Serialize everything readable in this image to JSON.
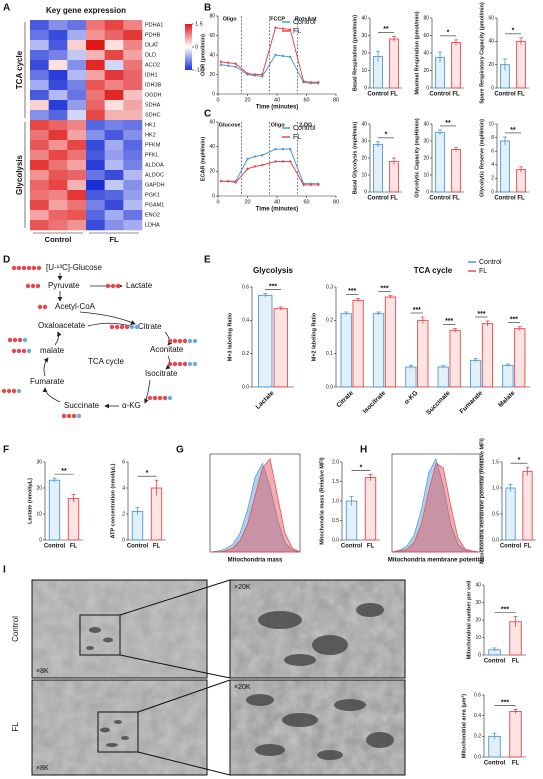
{
  "panel_labels": [
    "A",
    "B",
    "C",
    "D",
    "E",
    "F",
    "G",
    "H",
    "I"
  ],
  "chart_data": [
    {
      "type": "heatmap",
      "title": "Key gene expression",
      "column_groups": [
        "Control",
        "FL"
      ],
      "zlim": [
        -1.5,
        1.5
      ],
      "colorbar_ticks": [
        1.5,
        0,
        -1.5
      ],
      "colors": [
        "#1a2fd6",
        "#ffffff",
        "#e01818"
      ],
      "groups": [
        {
          "label": "TCA cycle",
          "rows": [
            "PDHA1",
            "PDHB",
            "DLAT",
            "DLD",
            "ACO2",
            "IDH1",
            "IDH3B",
            "OGDH",
            "SDHA",
            "SDHC"
          ],
          "values": [
            [
              -1.2,
              -0.8,
              -1.0,
              0.9,
              1.2,
              0.8
            ],
            [
              -1.0,
              -1.3,
              -0.6,
              0.7,
              1.0,
              1.3
            ],
            [
              -0.5,
              -1.2,
              0.3,
              1.5,
              0.2,
              0.8
            ],
            [
              -1.1,
              -0.9,
              -0.4,
              0.5,
              1.2,
              0.6
            ],
            [
              -1.3,
              0.2,
              -0.8,
              1.4,
              -0.3,
              0.9
            ],
            [
              -1.0,
              -1.4,
              -0.5,
              0.6,
              1.3,
              1.0
            ],
            [
              -0.6,
              -1.3,
              -0.9,
              1.1,
              0.8,
              1.0
            ],
            [
              -1.2,
              -0.5,
              -1.0,
              0.9,
              1.4,
              0.4
            ],
            [
              0.3,
              -1.4,
              -0.7,
              1.0,
              0.2,
              0.6
            ],
            [
              -0.8,
              -1.1,
              -0.3,
              1.2,
              0.5,
              0.5
            ]
          ]
        },
        {
          "label": "Glycolysis",
          "rows": [
            "HK1",
            "HK2",
            "PFKM",
            "PFKL",
            "ALDOA",
            "ALDOC",
            "GAPDH",
            "PGK1",
            "PGAM1",
            "ENO2",
            "LDHA"
          ],
          "values": [
            [
              1.2,
              1.0,
              0.8,
              -1.1,
              -0.9,
              -1.0
            ],
            [
              0.9,
              1.3,
              0.6,
              -0.8,
              -1.2,
              -0.8
            ],
            [
              1.1,
              0.7,
              1.2,
              -1.3,
              -0.6,
              -1.1
            ],
            [
              0.8,
              1.2,
              0.9,
              -1.2,
              -0.7,
              -1.0
            ],
            [
              1.3,
              0.9,
              0.6,
              -1.4,
              -0.5,
              -0.9
            ],
            [
              0.7,
              1.1,
              1.0,
              -1.0,
              -1.3,
              -0.5
            ],
            [
              1.0,
              1.2,
              0.5,
              -1.5,
              -0.4,
              -0.8
            ],
            [
              0.9,
              0.8,
              1.3,
              -1.2,
              -1.1,
              -0.7
            ],
            [
              1.2,
              0.6,
              0.9,
              -0.9,
              -1.3,
              -0.5
            ],
            [
              0.6,
              1.0,
              1.1,
              -1.1,
              -0.6,
              -1.0
            ],
            [
              1.1,
              0.9,
              0.7,
              -1.3,
              -0.8,
              -0.6
            ]
          ]
        }
      ]
    },
    {
      "type": "line",
      "ylabel": "OCR (pmol/min)",
      "xlabel": "Time (minutes)",
      "x": [
        2,
        7,
        12,
        20,
        25,
        30,
        39,
        44,
        49,
        58,
        63,
        68
      ],
      "xlim": [
        0,
        80
      ],
      "xticks": [
        0,
        20,
        40,
        60,
        80
      ],
      "ylim": [
        0,
        80
      ],
      "yticks": [
        0,
        20,
        40,
        60,
        80
      ],
      "injections": [
        {
          "label": "Oligo",
          "x": 16
        },
        {
          "label": "FCCP",
          "x": 35
        },
        {
          "label": "Rot+Ant",
          "x": 54
        }
      ],
      "series": [
        {
          "name": "Control",
          "color": "#4a9ad8",
          "values": [
            30,
            29,
            28,
            20,
            19,
            18,
            40,
            39,
            38,
            12,
            11,
            11
          ]
        },
        {
          "name": "FL",
          "color": "#e8474b",
          "values": [
            33,
            32,
            31,
            21,
            20,
            20,
            68,
            67,
            66,
            13,
            12,
            12
          ]
        }
      ]
    },
    {
      "type": "bar",
      "ylabel": "Basal Respiration (pmol/min)",
      "categories": [
        "Control",
        "FL"
      ],
      "values": [
        18,
        28
      ],
      "errors": [
        3,
        1.5
      ],
      "colors": [
        "#4a9ad8",
        "#e8474b"
      ],
      "ylim": [
        0,
        40
      ],
      "yticks": [
        0,
        10,
        20,
        30,
        40
      ],
      "significance": "**"
    },
    {
      "type": "bar",
      "ylabel": "Maximal Respiration (pmol/min)",
      "categories": [
        "Control",
        "FL"
      ],
      "values": [
        35,
        52
      ],
      "errors": [
        6,
        3
      ],
      "colors": [
        "#4a9ad8",
        "#e8474b"
      ],
      "ylim": [
        0,
        80
      ],
      "yticks": [
        0,
        20,
        40,
        60,
        80
      ],
      "significance": "*"
    },
    {
      "type": "bar",
      "ylabel": "Spare Respiratory Capacity (pmol/min)",
      "categories": [
        "Control",
        "FL"
      ],
      "values": [
        20,
        40
      ],
      "errors": [
        5,
        3
      ],
      "colors": [
        "#4a9ad8",
        "#e8474b"
      ],
      "ylim": [
        0,
        60
      ],
      "yticks": [
        0,
        20,
        40,
        60
      ],
      "significance": "*"
    },
    {
      "type": "line",
      "ylabel": "ECAR (mpH/min)",
      "xlabel": "Time (minutes)",
      "x": [
        2,
        7,
        12,
        20,
        25,
        30,
        39,
        44,
        49,
        58,
        63,
        68
      ],
      "xlim": [
        0,
        80
      ],
      "xticks": [
        0,
        20,
        40,
        60,
        80
      ],
      "ylim": [
        0,
        60
      ],
      "yticks": [
        0,
        20,
        40,
        60
      ],
      "injections": [
        {
          "label": "Glucose",
          "x": 16
        },
        {
          "label": "Oligo",
          "x": 35
        },
        {
          "label": "2-DG",
          "x": 54
        }
      ],
      "series": [
        {
          "name": "Control",
          "color": "#4a9ad8",
          "values": [
            12,
            12,
            12,
            30,
            32,
            33,
            38,
            38,
            38,
            10,
            10,
            10
          ]
        },
        {
          "name": "FL",
          "color": "#e8474b",
          "values": [
            12,
            12,
            11,
            22,
            24,
            25,
            28,
            28,
            28,
            9,
            9,
            9
          ]
        }
      ]
    },
    {
      "type": "bar",
      "ylabel": "Basal Glycolysis (mpH/min)",
      "categories": [
        "Control",
        "FL"
      ],
      "values": [
        28,
        18
      ],
      "errors": [
        1.5,
        2
      ],
      "colors": [
        "#4a9ad8",
        "#e8474b"
      ],
      "ylim": [
        0,
        40
      ],
      "yticks": [
        0,
        10,
        20,
        30,
        40
      ],
      "significance": "*"
    },
    {
      "type": "bar",
      "ylabel": "Glycolytic Capacity (mpH/min)",
      "categories": [
        "Control",
        "FL"
      ],
      "values": [
        35,
        25
      ],
      "errors": [
        1.5,
        1
      ],
      "colors": [
        "#4a9ad8",
        "#e8474b"
      ],
      "ylim": [
        0,
        40
      ],
      "yticks": [
        0,
        10,
        20,
        30,
        40
      ],
      "significance": "**"
    },
    {
      "type": "bar",
      "ylabel": "Glycolytic Reserve (mpH/min)",
      "categories": [
        "Control",
        "FL"
      ],
      "values": [
        7.5,
        3.3
      ],
      "errors": [
        0.6,
        0.4
      ],
      "colors": [
        "#4a9ad8",
        "#e8474b"
      ],
      "ylim": [
        0,
        10
      ],
      "yticks": [
        0,
        2,
        4,
        6,
        8,
        10
      ],
      "significance": "**"
    },
    {
      "type": "bar",
      "title": "Glycolysis",
      "ylabel": "M+3 labeling Ratio",
      "categories": [
        "Lactate"
      ],
      "ylim": [
        0,
        0.6
      ],
      "yticks": [
        {
          "value": 0,
          "label": "0.0"
        },
        0.2,
        0.4,
        0.6
      ],
      "significance": [
        "***"
      ],
      "series": [
        {
          "name": "Control",
          "color": "#4a9ad8",
          "values": [
            0.55
          ],
          "errors": [
            0.01
          ]
        },
        {
          "name": "FL",
          "color": "#e8474b",
          "values": [
            0.47
          ],
          "errors": [
            0.01
          ]
        }
      ]
    },
    {
      "type": "bar",
      "title": "TCA cycle",
      "ylabel": "M+2 labeling Ratio",
      "categories": [
        "Citrate",
        "Isocitrate",
        "α-KG",
        "Succinate",
        "Fumarate",
        "Malate"
      ],
      "ylim": [
        0,
        0.3
      ],
      "yticks": [
        {
          "value": 0,
          "label": "0.0"
        },
        0.1,
        0.2,
        0.3
      ],
      "significance": [
        "***",
        "***",
        "***",
        "***",
        "***",
        "***"
      ],
      "legend": true,
      "series": [
        {
          "name": "Control",
          "color": "#4a9ad8",
          "values": [
            0.22,
            0.22,
            0.06,
            0.06,
            0.08,
            0.065
          ],
          "errors": [
            0.005,
            0.005,
            0.005,
            0.004,
            0.005,
            0.004
          ]
        },
        {
          "name": "FL",
          "color": "#e8474b",
          "values": [
            0.26,
            0.27,
            0.2,
            0.17,
            0.19,
            0.175
          ],
          "errors": [
            0.006,
            0.004,
            0.01,
            0.006,
            0.008,
            0.006
          ]
        }
      ]
    },
    {
      "type": "bar",
      "ylabel": "Lactate (nmol/μL)",
      "categories": [
        "Control",
        "FL"
      ],
      "values": [
        23,
        16
      ],
      "errors": [
        0.8,
        1.5
      ],
      "colors": [
        "#4a9ad8",
        "#e8474b"
      ],
      "ylim": [
        0,
        30
      ],
      "yticks": [
        0,
        10,
        20,
        30
      ],
      "significance": "**"
    },
    {
      "type": "bar",
      "ylabel": "ATP concentration (nmol/μL)",
      "categories": [
        "Control",
        "FL"
      ],
      "values": [
        2.2,
        4.0
      ],
      "errors": [
        0.3,
        0.6
      ],
      "colors": [
        "#4a9ad8",
        "#e8474b"
      ],
      "ylim": [
        0,
        6
      ],
      "yticks": [
        0,
        2,
        4,
        6
      ],
      "significance": "*"
    },
    {
      "type": "area",
      "xlabel": "Mitochondria mass",
      "x": [
        0,
        1,
        2,
        3,
        4,
        5,
        6,
        7,
        8,
        9,
        10,
        11,
        12
      ],
      "xlim": [
        0,
        12
      ],
      "ylim": [
        0,
        105
      ],
      "series": [
        {
          "name": "Control",
          "color": "#4a9ad8",
          "values": [
            0,
            1,
            3,
            8,
            20,
            45,
            80,
            95,
            70,
            35,
            10,
            2,
            0
          ]
        },
        {
          "name": "FL",
          "color": "#e8474b",
          "values": [
            0,
            0,
            1,
            4,
            12,
            30,
            60,
            90,
            100,
            60,
            20,
            4,
            0
          ]
        }
      ]
    },
    {
      "type": "bar",
      "ylabel": "Mitochondria mass (Relative MFI)",
      "categories": [
        "Control",
        "FL"
      ],
      "values": [
        1.0,
        1.6
      ],
      "errors": [
        0.12,
        0.08
      ],
      "colors": [
        "#4a9ad8",
        "#e8474b"
      ],
      "ylim": [
        0,
        2
      ],
      "yticks": [
        {
          "value": 0,
          "label": "0.0"
        },
        0.5,
        {
          "value": 1,
          "label": "1.0"
        },
        1.5,
        {
          "value": 2,
          "label": "2.0"
        }
      ],
      "significance": "*"
    },
    {
      "type": "area",
      "xlabel": "Mitochondria membrane potential",
      "x": [
        0,
        1,
        2,
        3,
        4,
        5,
        6,
        7,
        8,
        9,
        10,
        11,
        12
      ],
      "xlim": [
        0,
        12
      ],
      "ylim": [
        0,
        105
      ],
      "series": [
        {
          "name": "Control",
          "color": "#4a9ad8",
          "values": [
            0,
            2,
            6,
            18,
            45,
            85,
            100,
            70,
            30,
            8,
            2,
            0,
            0
          ]
        },
        {
          "name": "FL",
          "color": "#e8474b",
          "values": [
            0,
            1,
            3,
            10,
            30,
            65,
            95,
            90,
            50,
            15,
            3,
            1,
            0
          ]
        }
      ]
    },
    {
      "type": "bar",
      "ylabel": "Mitochondria membrane potential (Relative MFI)",
      "categories": [
        "Control",
        "FL"
      ],
      "values": [
        1.0,
        1.32
      ],
      "errors": [
        0.07,
        0.08
      ],
      "colors": [
        "#4a9ad8",
        "#e8474b"
      ],
      "ylim": [
        0,
        1.5
      ],
      "yticks": [
        {
          "value": 0,
          "label": "0.0"
        },
        0.5,
        {
          "value": 1,
          "label": "1.0"
        },
        1.5
      ],
      "significance": "*"
    },
    {
      "type": "bar",
      "ylabel": "Mitochondrial number per cell",
      "categories": [
        "Control",
        "FL"
      ],
      "values": [
        3,
        19
      ],
      "errors": [
        1,
        3
      ],
      "colors": [
        "#4a9ad8",
        "#e8474b"
      ],
      "ylim": [
        0,
        40
      ],
      "yticks": [
        0,
        10,
        20,
        30,
        40
      ],
      "significance": "***"
    },
    {
      "type": "bar",
      "ylabel": "Mitochondrial area (μm²)",
      "categories": [
        "Control",
        "FL"
      ],
      "values": [
        0.2,
        0.44
      ],
      "errors": [
        0.03,
        0.02
      ],
      "colors": [
        "#4a9ad8",
        "#e8474b"
      ],
      "ylim": [
        0,
        0.6
      ],
      "yticks": [
        {
          "value": 0,
          "label": "0.0"
        },
        0.2,
        0.4,
        0.6
      ],
      "significance": "***"
    }
  ],
  "diagram": {
    "nodes": [
      "[U-¹³C]-Glucose",
      "Pyruvate",
      "Lactate",
      "Acetyl-CoA",
      "Citrate",
      "Aconitate",
      "Isocitrate",
      "α-KG",
      "Succinate",
      "Fumarate",
      "malate",
      "Oxaloacetate"
    ],
    "center": "TCA cycle"
  },
  "micrographs": {
    "rows": [
      "Control",
      "FL"
    ],
    "magnifications": [
      "×8K",
      "×20K",
      "×8K",
      "×20K"
    ]
  }
}
